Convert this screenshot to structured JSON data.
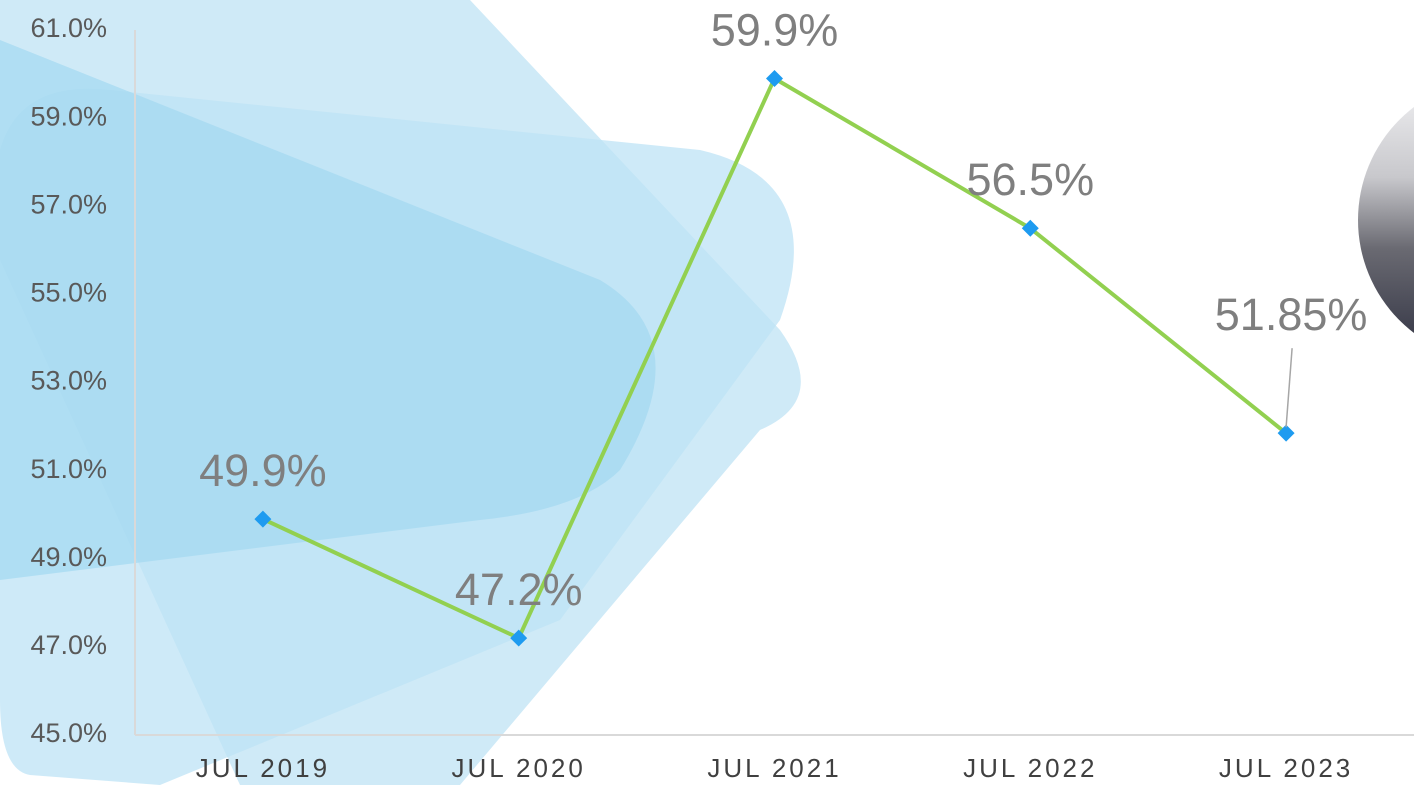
{
  "chart_data": {
    "type": "line",
    "categories": [
      "JUL 2019",
      "JUL 2020",
      "JUL 2021",
      "JUL 2022",
      "JUL 2023"
    ],
    "values": [
      49.9,
      47.2,
      59.9,
      56.5,
      51.85
    ],
    "value_labels": [
      "49.9%",
      "47.2%",
      "59.9%",
      "56.5%",
      "51.85%"
    ],
    "color": "#92d050",
    "marker_color": "#1e9bf0",
    "ylim": [
      45,
      61
    ],
    "yticks": [
      {
        "value": 45,
        "label": "45.0%"
      },
      {
        "value": 47,
        "label": "47.0%"
      },
      {
        "value": 49,
        "label": "49.0%"
      },
      {
        "value": 51,
        "label": "51.0%"
      },
      {
        "value": 53,
        "label": "53.0%"
      },
      {
        "value": 55,
        "label": "55.0%"
      },
      {
        "value": 57,
        "label": "57.0%"
      },
      {
        "value": 59,
        "label": "59.0%"
      },
      {
        "value": 61,
        "label": "61.0%"
      }
    ]
  }
}
